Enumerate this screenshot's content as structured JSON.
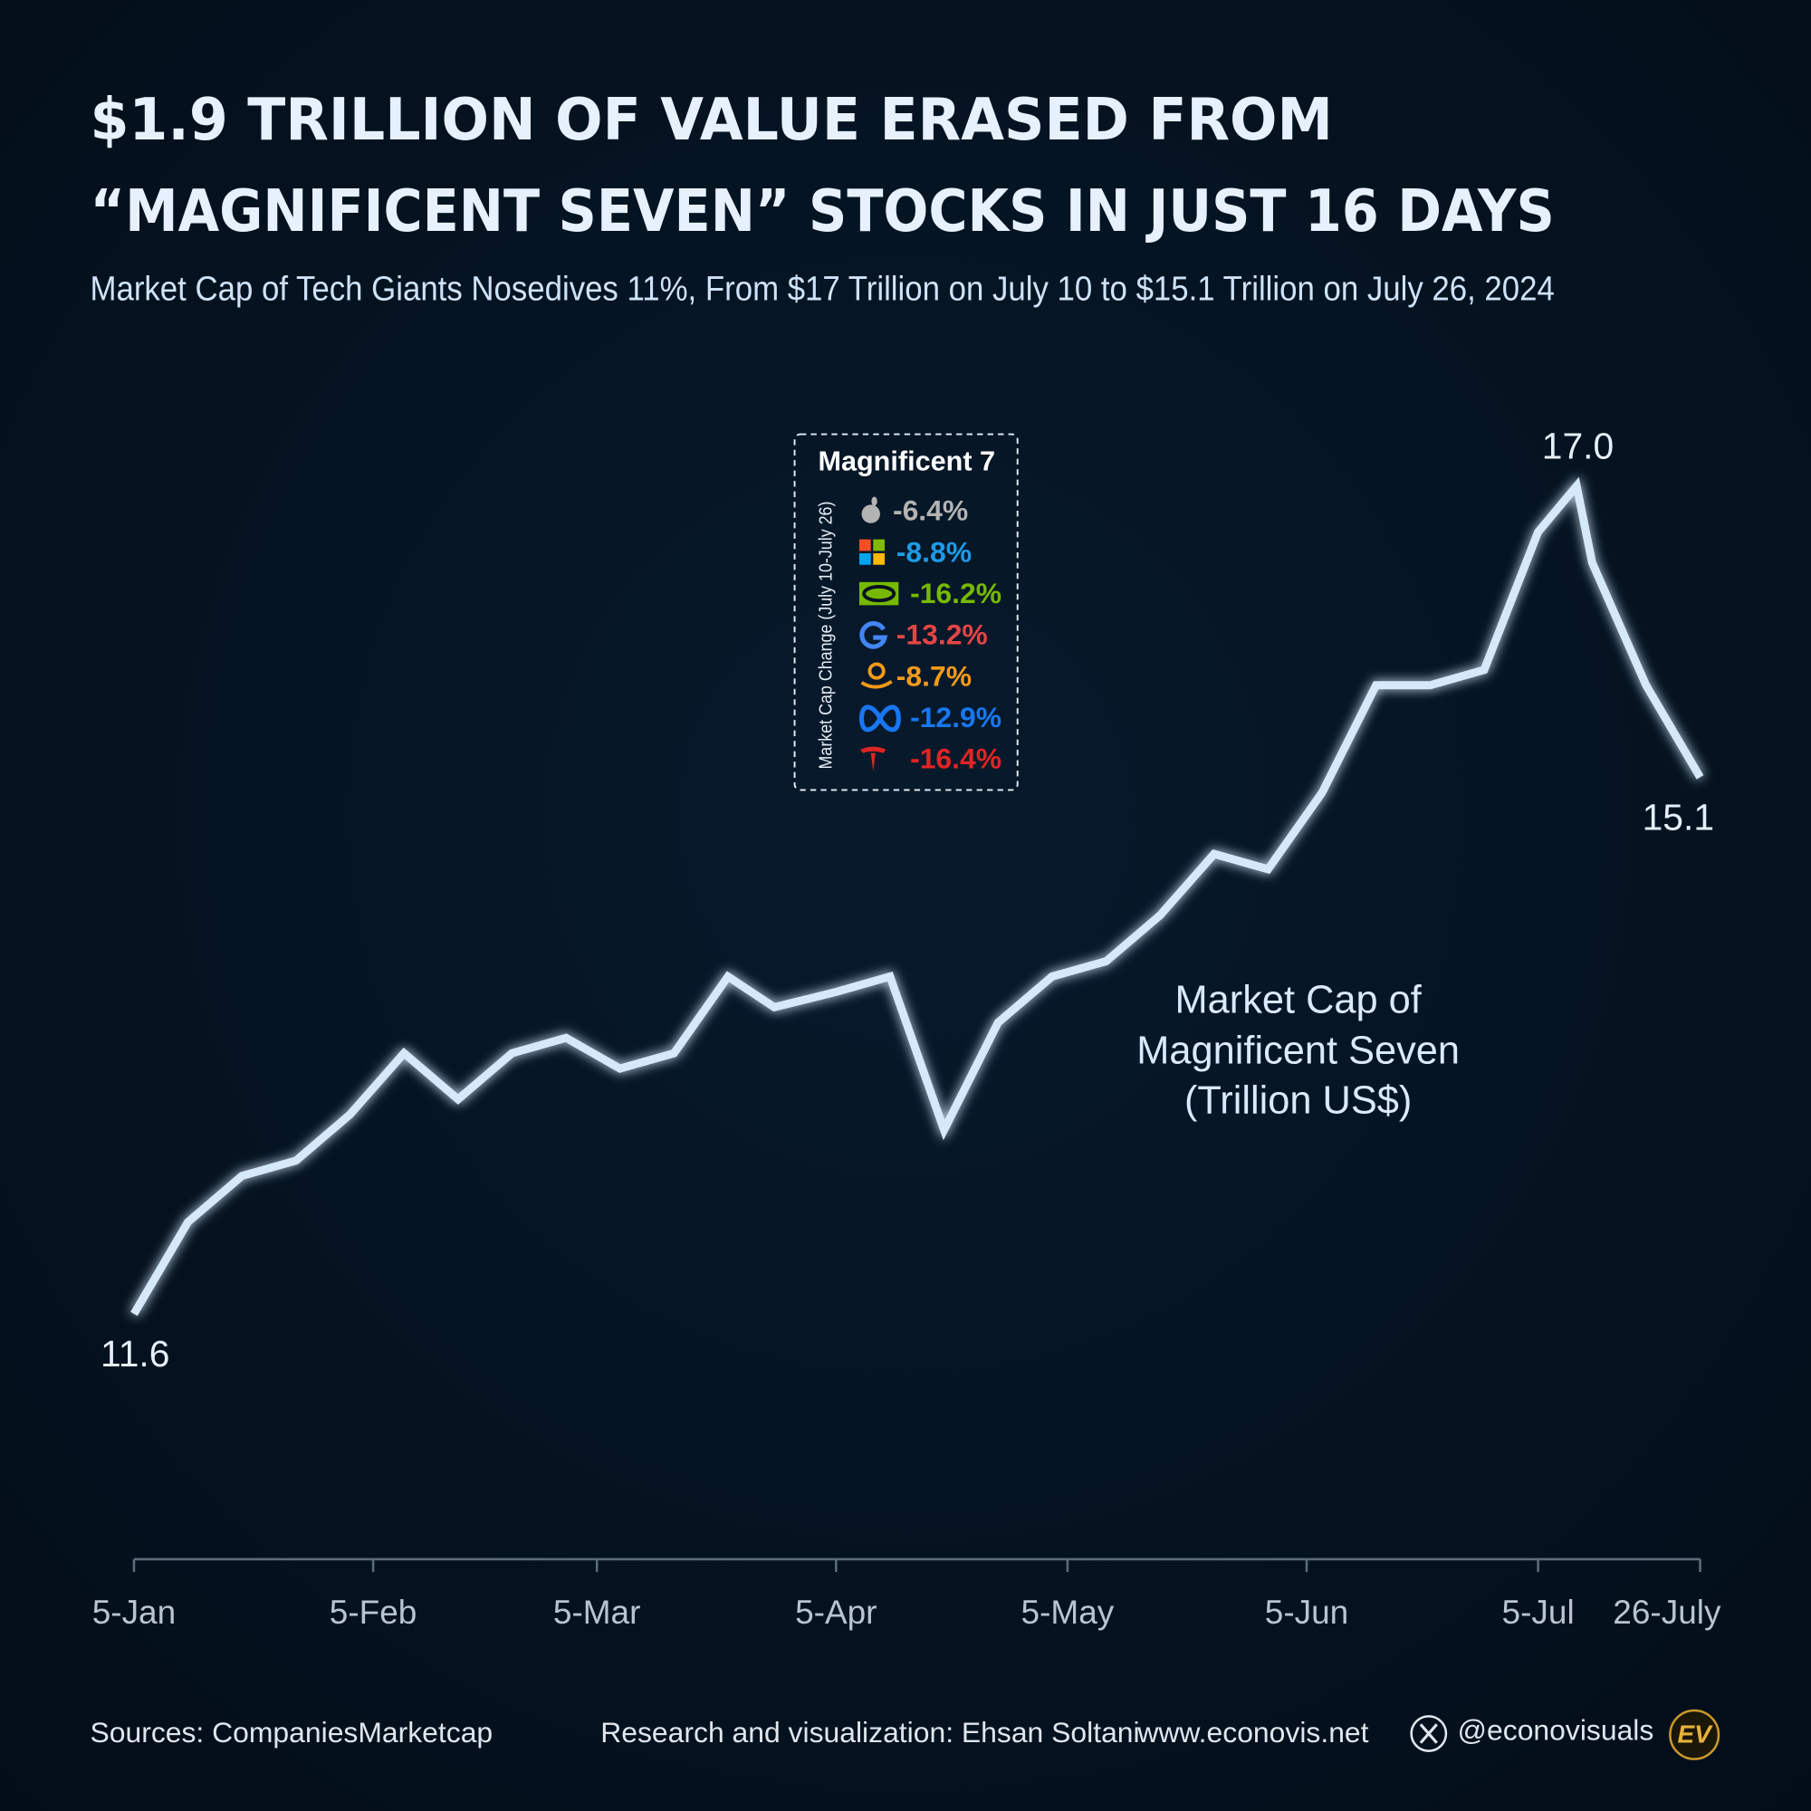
{
  "chart_data": {
    "type": "line",
    "title": [
      "$1.9 TRILLION OF VALUE ERASED FROM",
      "“MAGNIFICENT SEVEN” STOCKS IN JUST 16 DAYS"
    ],
    "subtitle": "Market Cap of Tech Giants Nosedives 11%, From $17 Trillion on July 10 to $15.1 Trillion on July 26, 2024",
    "annotation": [
      "Market Cap of",
      "Magnificent Seven",
      "(Trillion US$)"
    ],
    "x": [
      "01-05",
      "01-12",
      "01-19",
      "01-26",
      "02-02",
      "02-09",
      "02-16",
      "02-23",
      "03-01",
      "03-08",
      "03-15",
      "03-22",
      "03-28",
      "04-05",
      "04-12",
      "04-19",
      "04-26",
      "05-03",
      "05-10",
      "05-17",
      "05-24",
      "05-31",
      "06-07",
      "06-14",
      "06-21",
      "06-28",
      "07-05",
      "07-10",
      "07-12",
      "07-19",
      "07-26"
    ],
    "values": [
      11.6,
      12.2,
      12.5,
      12.6,
      12.9,
      13.3,
      13.0,
      13.3,
      13.4,
      13.2,
      13.3,
      13.8,
      13.6,
      13.7,
      13.8,
      12.8,
      13.5,
      13.8,
      13.9,
      14.2,
      14.6,
      14.5,
      15.0,
      15.7,
      15.7,
      15.8,
      16.7,
      17.0,
      16.5,
      15.7,
      15.1
    ],
    "value_labels": [
      "11.6",
      null,
      null,
      null,
      null,
      null,
      null,
      null,
      null,
      null,
      null,
      null,
      null,
      null,
      null,
      null,
      null,
      null,
      null,
      null,
      null,
      null,
      null,
      null,
      null,
      null,
      null,
      "17.0",
      null,
      null,
      "15.1"
    ],
    "color": "#d6e9fb",
    "xlim": [
      "01-05",
      "07-26"
    ],
    "xticks": [
      {
        "value": "01-05",
        "label": "5-Jan"
      },
      {
        "value": "02-05",
        "label": "5-Feb"
      },
      {
        "value": "03-05",
        "label": "5-Mar"
      },
      {
        "value": "04-05",
        "label": "5-Apr"
      },
      {
        "value": "05-05",
        "label": "5-May"
      },
      {
        "value": "06-05",
        "label": "5-Jun"
      },
      {
        "value": "07-05",
        "label": "5-Jul"
      },
      {
        "value": "07-26",
        "label": "26-July"
      }
    ],
    "ylim": [
      10,
      18
    ],
    "grid": false,
    "legend_box": {
      "title": "Magnificent 7",
      "axis_label": "Market Cap Change (July 10-July 26)",
      "items": [
        {
          "label": "-6.4%",
          "color": "#b3b3b3"
        },
        {
          "label": "-8.8%",
          "color": "#1e9be8"
        },
        {
          "label": "-16.2%",
          "color": "#76b900"
        },
        {
          "label": "-13.2%",
          "color": "#e64545"
        },
        {
          "label": "-8.7%",
          "color": "#f59a1a"
        },
        {
          "label": "-12.9%",
          "color": "#1877f2"
        },
        {
          "label": "-16.4%",
          "color": "#e02424"
        }
      ]
    },
    "footer": {
      "source": "Sources: CompaniesMarketcap",
      "credit": "Research and visualization: Ehsan Soltani",
      "website": "www.econovis.net",
      "handle": "@econovisuals",
      "logo": "EV"
    }
  }
}
